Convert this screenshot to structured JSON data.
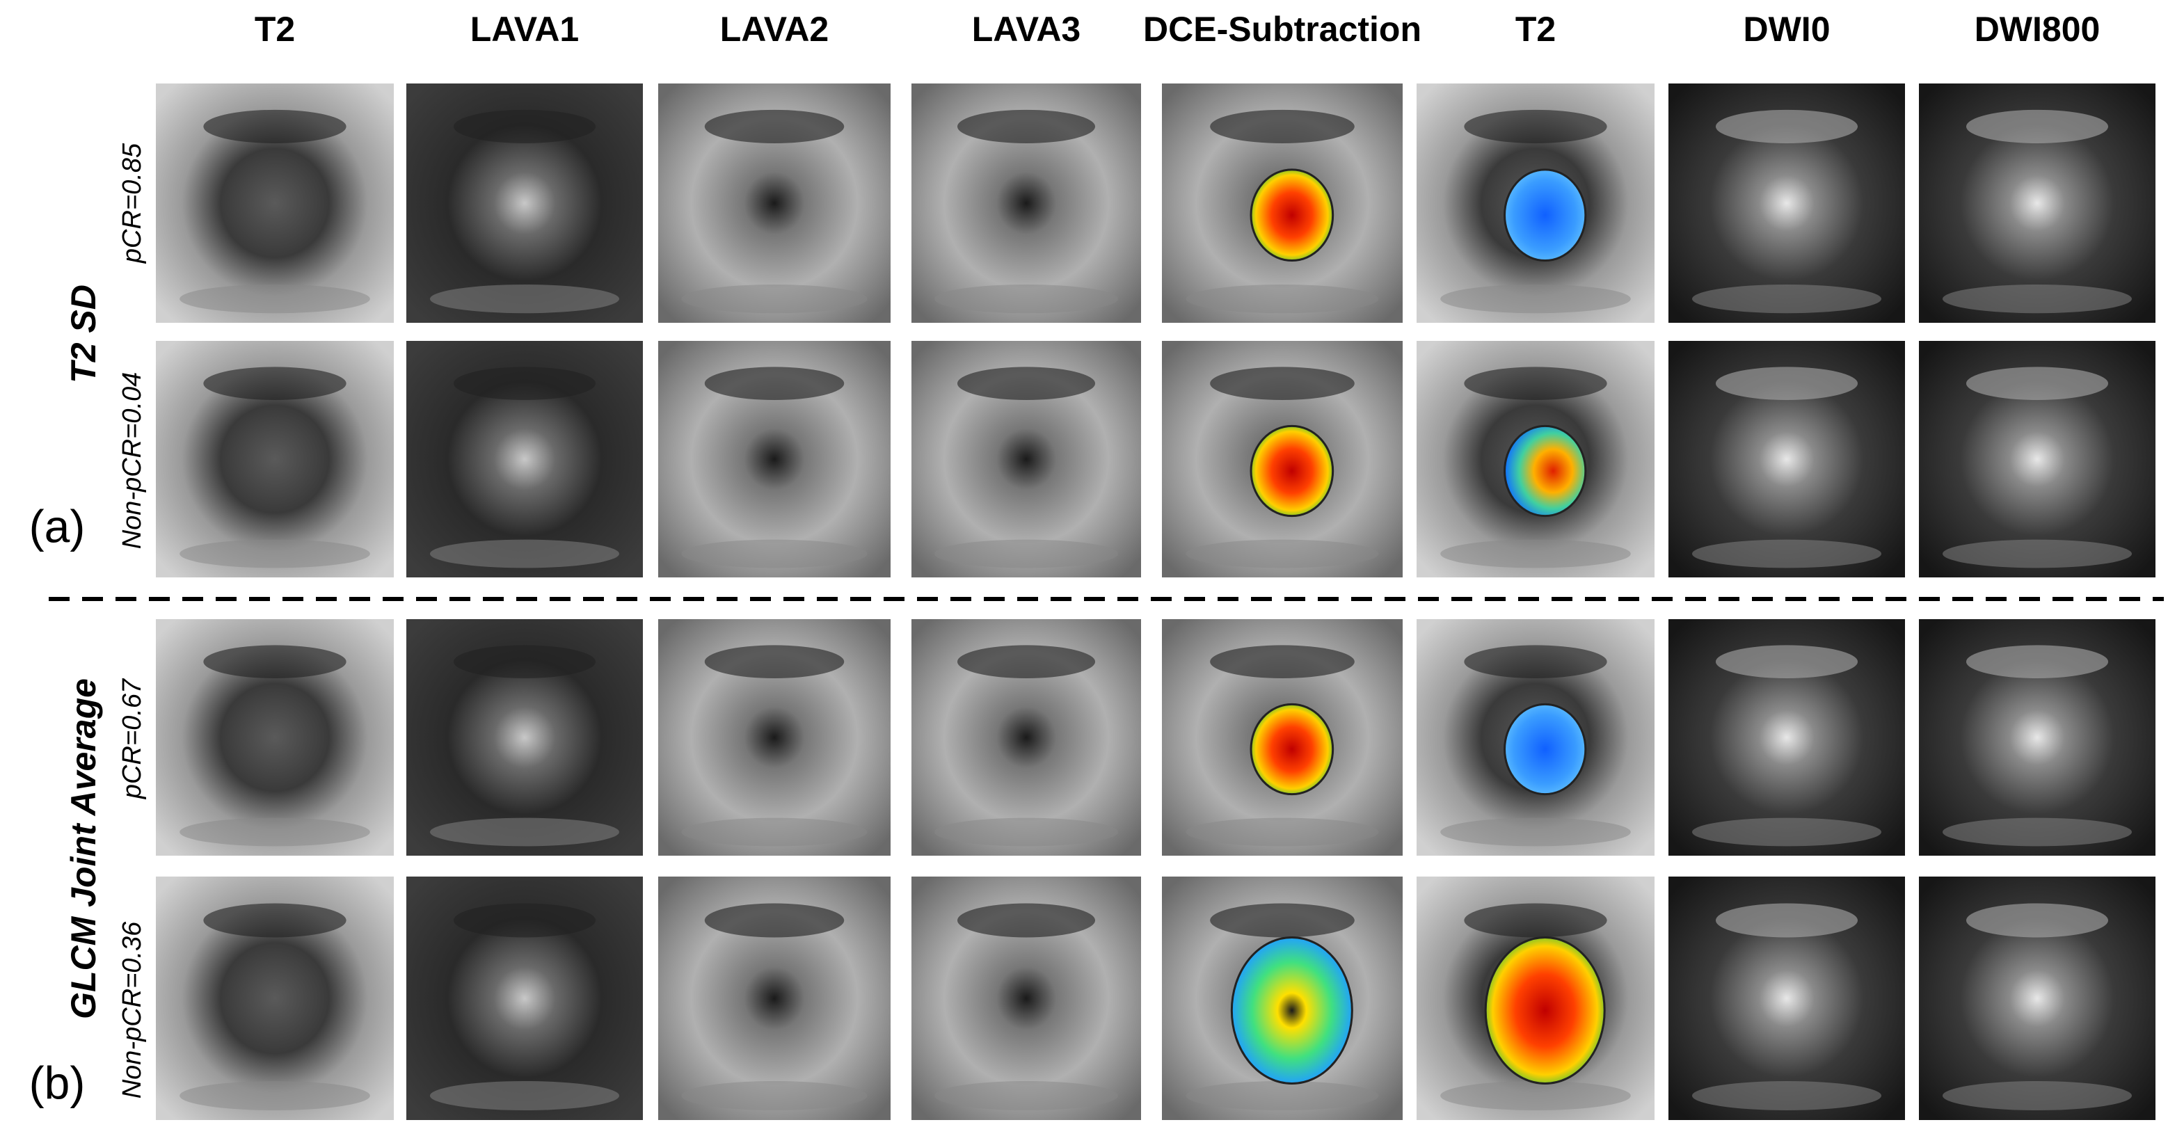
{
  "column_headers": [
    "T2",
    "LAVA1",
    "LAVA2",
    "LAVA3",
    "DCE-Subtraction",
    "T2",
    "DWI0",
    "DWI800"
  ],
  "panels": [
    {
      "label": "(a)",
      "feature": "T2 SD",
      "rows": [
        {
          "label": "pCR=0.85"
        },
        {
          "label": "Non-pCR=0.04"
        }
      ]
    },
    {
      "label": "(b)",
      "feature": "GLCM Joint Average",
      "rows": [
        {
          "label": "pCR=0.67"
        },
        {
          "label": "Non-pCR=0.36"
        }
      ]
    }
  ]
}
